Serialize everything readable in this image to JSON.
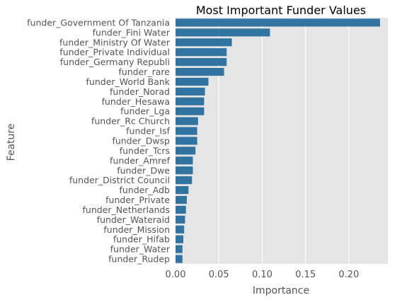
{
  "chart_data": {
    "type": "bar",
    "orientation": "horizontal",
    "title": "Most Important Funder Values",
    "xlabel": "Importance",
    "ylabel": "Feature",
    "xlim": [
      0,
      0.245
    ],
    "xticks": [
      0.0,
      0.05,
      0.1,
      0.15,
      0.2
    ],
    "xtick_labels": [
      "0.00",
      "0.05",
      "0.10",
      "0.15",
      "0.20"
    ],
    "grid": true,
    "bar_color": "#3274a1",
    "plot_background": "#e5e5e5",
    "grid_color": "#ffffff",
    "categories": [
      "funder_Government Of Tanzania",
      "funder_Fini Water",
      "funder_Ministry Of Water",
      "funder_Private Individual",
      "funder_Germany Republi",
      "funder_rare",
      "funder_World Bank",
      "funder_Norad",
      "funder_Hesawa",
      "funder_Lga",
      "funder_Rc Church",
      "funder_Isf",
      "funder_Dwsp",
      "funder_Tcrs",
      "funder_Amref",
      "funder_Dwe",
      "funder_District Council",
      "funder_Adb",
      "funder_Private",
      "funder_Netherlands",
      "funder_Wateraid",
      "funder_Mission",
      "funder_Hifab",
      "funder_Water",
      "funder_Rudep"
    ],
    "values": [
      0.236,
      0.109,
      0.065,
      0.059,
      0.059,
      0.056,
      0.038,
      0.034,
      0.033,
      0.033,
      0.026,
      0.025,
      0.025,
      0.023,
      0.02,
      0.02,
      0.019,
      0.015,
      0.013,
      0.012,
      0.011,
      0.01,
      0.009,
      0.008,
      0.008
    ]
  }
}
